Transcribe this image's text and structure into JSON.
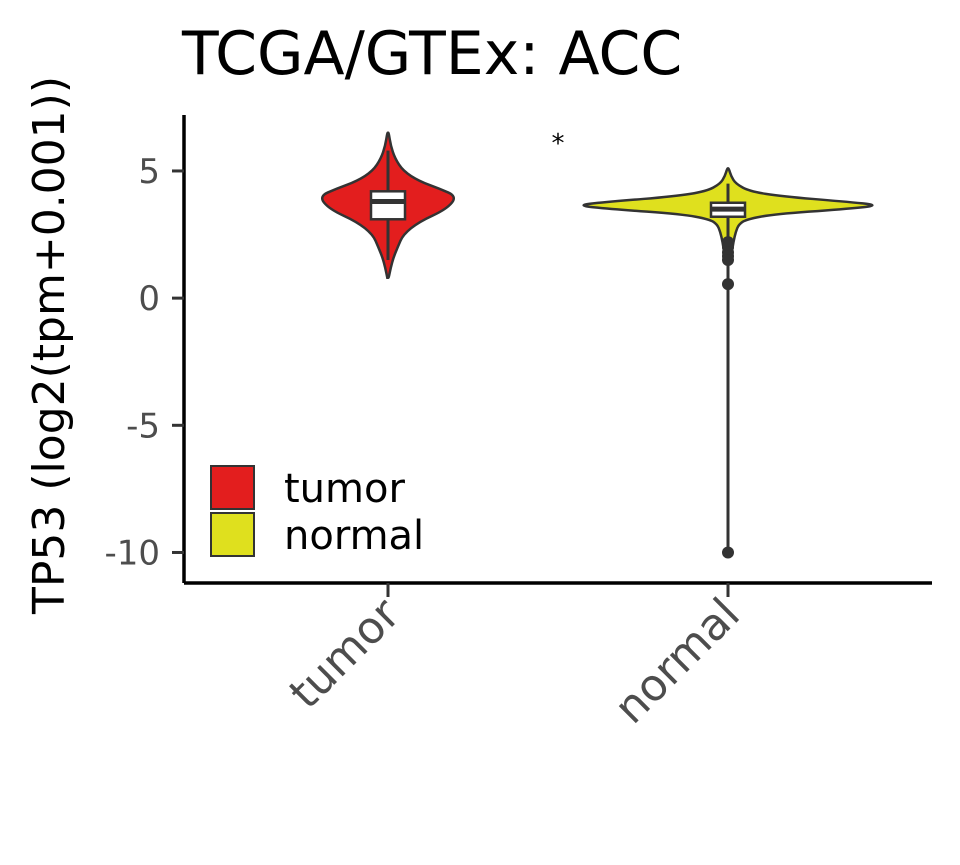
{
  "chart_data": {
    "type": "violin",
    "title": "TCGA/GTEx: ACC",
    "xlabel": "",
    "ylabel": "TP53 (log2(tpm+0.001))",
    "ylim": [
      -11.2,
      7.2
    ],
    "yticks": [
      5,
      0,
      -5,
      -10
    ],
    "ytick_labels": [
      "5",
      "0",
      "-5",
      "-10"
    ],
    "categories": [
      "tumor",
      "normal"
    ],
    "significance": "*",
    "grid": false,
    "legend_position": "bottom-left",
    "series": [
      {
        "name": "tumor",
        "color": "#e31e1e",
        "range": [
          0.8,
          6.5
        ],
        "box": {
          "q1": 3.1,
          "median": 3.8,
          "q3": 4.2,
          "whisker_low": 1.5,
          "whisker_high": 5.8
        },
        "outliers": [],
        "density": [
          [
            0.8,
            0.01
          ],
          [
            1.2,
            0.04
          ],
          [
            1.6,
            0.08
          ],
          [
            2.0,
            0.14
          ],
          [
            2.5,
            0.22
          ],
          [
            3.0,
            0.45
          ],
          [
            3.5,
            0.85
          ],
          [
            4.0,
            1.0
          ],
          [
            4.3,
            0.75
          ],
          [
            4.6,
            0.45
          ],
          [
            5.0,
            0.22
          ],
          [
            5.5,
            0.1
          ],
          [
            6.0,
            0.04
          ],
          [
            6.5,
            0.01
          ]
        ]
      },
      {
        "name": "normal",
        "color": "#dfe01e",
        "range": [
          -10.4,
          5.1
        ],
        "box": {
          "q1": 3.2,
          "median": 3.5,
          "q3": 3.75,
          "whisker_low": 2.5,
          "whisker_high": 4.5
        },
        "outliers": [
          2.2,
          2.0,
          1.8,
          1.65,
          1.5,
          0.55,
          -10.0
        ],
        "density": [
          [
            1.4,
            0.01
          ],
          [
            1.8,
            0.025
          ],
          [
            2.2,
            0.035
          ],
          [
            2.6,
            0.05
          ],
          [
            2.9,
            0.07
          ],
          [
            3.1,
            0.12
          ],
          [
            3.3,
            0.3
          ],
          [
            3.5,
            0.75
          ],
          [
            3.65,
            1.0
          ],
          [
            3.8,
            0.75
          ],
          [
            4.0,
            0.35
          ],
          [
            4.2,
            0.14
          ],
          [
            4.5,
            0.05
          ],
          [
            4.8,
            0.02
          ],
          [
            5.1,
            0.005
          ]
        ]
      }
    ]
  }
}
